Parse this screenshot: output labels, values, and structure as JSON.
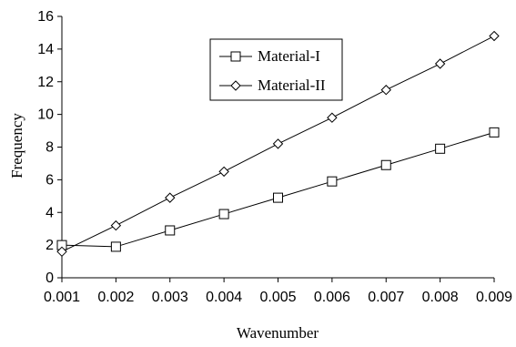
{
  "chart_data": {
    "type": "line",
    "title": "",
    "xlabel": "Wavenumber",
    "ylabel": "Frequency",
    "x": [
      0.001,
      0.002,
      0.003,
      0.004,
      0.005,
      0.006,
      0.007,
      0.008,
      0.009
    ],
    "x_tick_labels": [
      "0.001",
      "0.002",
      "0.003",
      "0.004",
      "0.005",
      "0.006",
      "0.007",
      "0.008",
      "0.009"
    ],
    "xlim": [
      0.001,
      0.009
    ],
    "ylim": [
      0,
      16
    ],
    "y_ticks": [
      0,
      2,
      4,
      6,
      8,
      10,
      12,
      14,
      16
    ],
    "y_tick_labels": [
      "0",
      "2",
      "4",
      "6",
      "8",
      "10",
      "12",
      "14",
      "16"
    ],
    "grid": false,
    "legend_position": "top-center",
    "series": [
      {
        "name": "Material-I",
        "marker": "square",
        "values": [
          2.0,
          1.9,
          2.9,
          3.9,
          4.9,
          5.9,
          6.9,
          7.9,
          8.9
        ]
      },
      {
        "name": "Material-II",
        "marker": "diamond",
        "values": [
          1.6,
          3.2,
          4.9,
          6.5,
          8.2,
          9.8,
          11.5,
          13.1,
          14.8
        ]
      }
    ]
  }
}
